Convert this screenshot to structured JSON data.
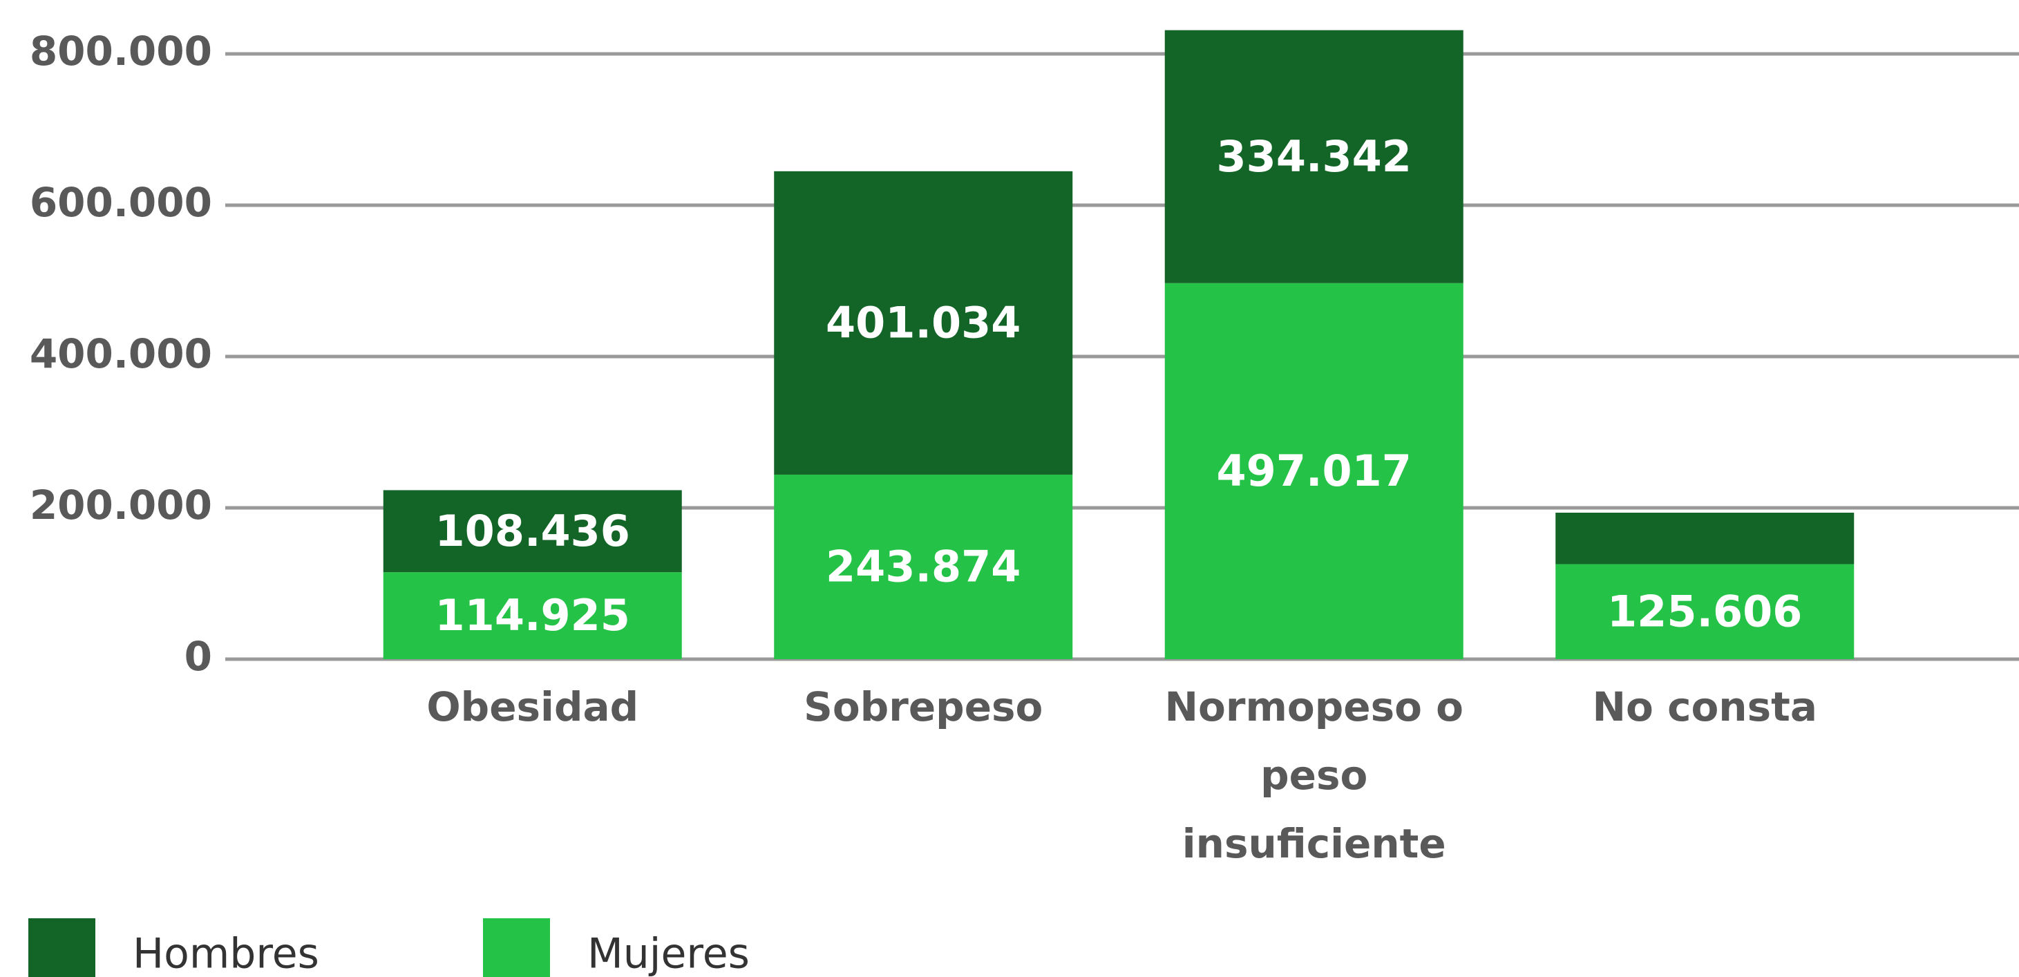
{
  "chart_data": {
    "type": "stacked-bar",
    "categories": [
      "Obesidad",
      "Sobrepeso",
      "Normopeso o peso insuficiente",
      "No consta"
    ],
    "series": [
      {
        "name": "Mujeres",
        "color": "#25c248",
        "values": [
          114925,
          243874,
          497017,
          125606
        ],
        "value_labels": [
          "114.925",
          "243.874",
          "497.017",
          "125.606"
        ]
      },
      {
        "name": "Hombres",
        "color": "#136427",
        "values": [
          108436,
          401034,
          334342,
          68000
        ],
        "value_labels": [
          "108.436",
          "401.034",
          "334.342",
          null
        ]
      }
    ],
    "ylim": [
      0,
      800000
    ],
    "yticks": [
      0,
      {
        "value": 200000,
        "label": "200.000"
      },
      {
        "value": 400000,
        "label": "400.000"
      },
      {
        "value": 600000,
        "label": "600.000"
      },
      {
        "value": 800000,
        "label": "800.000"
      }
    ],
    "grid": true,
    "legend": "bottom-left"
  }
}
